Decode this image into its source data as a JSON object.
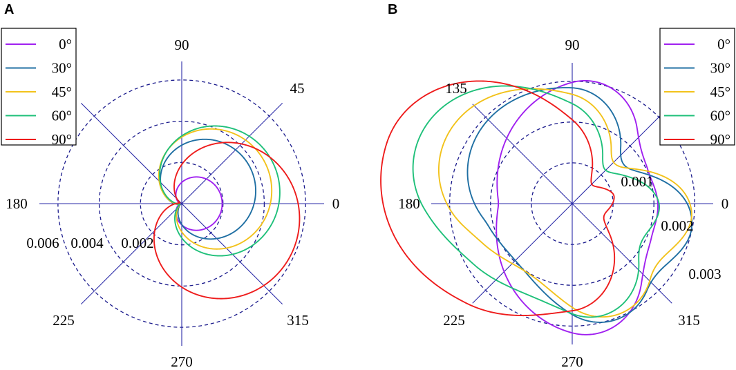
{
  "panels": [
    {
      "label": "A"
    },
    {
      "label": "B"
    }
  ],
  "chart_data": [
    {
      "type": "polar-line",
      "panel": "A",
      "angle_unit": "degrees",
      "angle_labels": [
        "0",
        "45",
        "90",
        "180",
        "225",
        "270",
        "315"
      ],
      "radial_ticks": [
        0.002,
        0.004,
        0.006
      ],
      "radial_tick_labels": [
        "0.002",
        "0.004",
        "0.006"
      ],
      "rmax": 0.0068,
      "legend": {
        "position": "top-left",
        "entries": [
          "0°",
          "30°",
          "45°",
          "60°",
          "90°"
        ]
      },
      "series": [
        {
          "name": "0°",
          "color": "#a020f0",
          "pole_offset": 4e-05,
          "amp": 0.00186,
          "dir_deg": 0,
          "min": 0.0001
        },
        {
          "name": "30°",
          "color": "#1f6fa3",
          "pole_offset": 0.00012,
          "amp": 0.00365,
          "dir_deg": 30,
          "min": 0.0001
        },
        {
          "name": "45°",
          "color": "#f2c21b",
          "pole_offset": 0.00018,
          "amp": 0.0044,
          "dir_deg": 25,
          "min": 0.0001
        },
        {
          "name": "60°",
          "color": "#1fc07a",
          "pole_offset": 0.00026,
          "amp": 0.00475,
          "dir_deg": 20,
          "min": 0.0001
        },
        {
          "name": "90°",
          "color": "#ee1c1c",
          "pole_offset": 0.00011,
          "amp": 0.00575,
          "dir_deg": 338,
          "min": 0.0001
        }
      ]
    },
    {
      "type": "polar-line",
      "panel": "B",
      "angle_unit": "degrees",
      "angle_labels": [
        "0",
        "90",
        "135",
        "180",
        "225",
        "270",
        "315"
      ],
      "radial_ticks": [
        0.001,
        0.002,
        0.003
      ],
      "radial_tick_labels": [
        "0.001",
        "0.002",
        "0.003"
      ],
      "rmax": 0.0034,
      "legend": {
        "position": "top-right",
        "entries": [
          "0°",
          "30°",
          "45°",
          "60°",
          "90°"
        ]
      },
      "series": [
        {
          "name": "0°",
          "color": "#a020f0",
          "lobes": [
            {
              "amp": 0.003,
              "dir_deg": 80,
              "width": 1.15
            },
            {
              "amp": 0.0032,
              "dir_deg": 280,
              "width": 1.15
            },
            {
              "amp": 0.00175,
              "dir_deg": 180,
              "width": 1.0
            },
            {
              "amp": 0.0013,
              "dir_deg": 0,
              "width": 0.55
            }
          ]
        },
        {
          "name": "30°",
          "color": "#1f6fa3",
          "lobes": [
            {
              "amp": 0.0028,
              "dir_deg": 92,
              "width": 1.15
            },
            {
              "amp": 0.003,
              "dir_deg": 292,
              "width": 1.15
            },
            {
              "amp": 0.0022,
              "dir_deg": 180,
              "width": 1.0
            },
            {
              "amp": 0.0019,
              "dir_deg": 0,
              "width": 0.55
            }
          ]
        },
        {
          "name": "45°",
          "color": "#f2c21b",
          "lobes": [
            {
              "amp": 0.0027,
              "dir_deg": 100,
              "width": 1.15
            },
            {
              "amp": 0.0029,
              "dir_deg": 295,
              "width": 1.15
            },
            {
              "amp": 0.0027,
              "dir_deg": 180,
              "width": 1.0
            },
            {
              "amp": 0.002,
              "dir_deg": 5,
              "width": 0.55
            }
          ]
        },
        {
          "name": "60°",
          "color": "#1fc07a",
          "lobes": [
            {
              "amp": 0.0026,
              "dir_deg": 108,
              "width": 1.15
            },
            {
              "amp": 0.0028,
              "dir_deg": 285,
              "width": 1.15
            },
            {
              "amp": 0.0031,
              "dir_deg": 180,
              "width": 1.0
            },
            {
              "amp": 0.0017,
              "dir_deg": 8,
              "width": 0.55
            }
          ]
        },
        {
          "name": "90°",
          "color": "#ee1c1c",
          "lobes": [
            {
              "amp": 0.0025,
              "dir_deg": 120,
              "width": 1.15
            },
            {
              "amp": 0.0026,
              "dir_deg": 265,
              "width": 1.15
            },
            {
              "amp": 0.00345,
              "dir_deg": 180,
              "width": 1.0
            },
            {
              "amp": 0.001,
              "dir_deg": 10,
              "width": 0.55
            }
          ]
        }
      ]
    }
  ]
}
